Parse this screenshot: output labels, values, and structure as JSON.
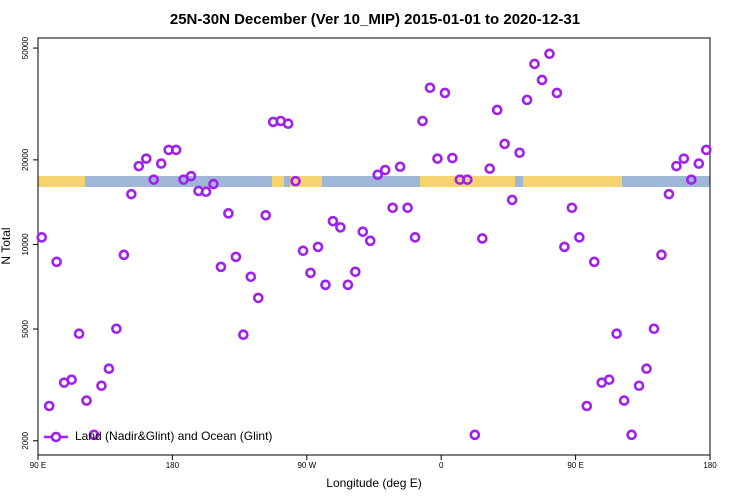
{
  "chart_data": {
    "type": "scatter",
    "title": "25N-30N December (Ver 10_MIP)   2015-01-01 to 2020-12-31",
    "x_label": "Longitude (deg E)",
    "y_label": "N Total",
    "log_y": true,
    "legend": "bottomleft",
    "xlim": [
      90,
      540
    ],
    "ylim": [
      1780,
      54300
    ],
    "xticks": [
      {
        "value": 90,
        "label": "90 E"
      },
      180,
      {
        "value": 270,
        "label": "90 W"
      },
      {
        "value": 360,
        "label": "0"
      },
      {
        "value": 450,
        "label": "90 E"
      },
      {
        "value": 540,
        "label": "180"
      }
    ],
    "yticks": [
      2000,
      5000,
      10000,
      20000,
      50000
    ],
    "x": [
      92.5,
      97.5,
      102.5,
      107.5,
      112.5,
      117.5,
      122.5,
      127.5,
      132.5,
      137.5,
      142.5,
      147.5,
      152.5,
      157.5,
      162.5,
      167.5,
      172.5,
      177.5,
      182.5,
      187.5,
      192.5,
      197.5,
      202.5,
      207.5,
      212.5,
      217.5,
      222.5,
      227.5,
      232.5,
      237.5,
      242.5,
      247.5,
      252.5,
      257.5,
      262.5,
      267.5,
      272.5,
      277.5,
      282.5,
      287.5,
      292.5,
      297.5,
      302.5,
      307.5,
      312.5,
      317.5,
      322.5,
      327.5,
      332.5,
      337.5,
      342.5,
      347.5,
      352.5,
      357.5,
      362.5,
      367.5,
      372.5,
      377.5,
      382.5,
      387.5,
      392.5,
      397.5,
      402.5,
      407.5,
      412.5,
      417.5,
      422.5,
      427.5,
      432.5,
      437.5,
      442.5,
      447.5,
      452.5,
      457.5,
      462.5,
      467.5,
      472.5,
      477.5,
      482.5,
      487.5,
      492.5,
      497.5,
      502.5,
      507.5,
      512.5,
      517.5,
      522.5,
      527.5,
      532.5,
      537.5
    ],
    "series": [
      {
        "name": "Land (Nadir&Glint) and Ocean (Glint)",
        "color": "#a020f0",
        "values": [
          10600,
          2660,
          8670,
          3220,
          3300,
          4810,
          2780,
          2100,
          3140,
          3610,
          5010,
          9180,
          15100,
          19000,
          20200,
          17000,
          19400,
          21700,
          21700,
          17000,
          17500,
          15500,
          15400,
          16400,
          8320,
          12900,
          9030,
          4770,
          7670,
          6450,
          12700,
          27300,
          27500,
          26900,
          16800,
          9490,
          7920,
          9800,
          7180,
          12100,
          11500,
          7180,
          7990,
          11100,
          10300,
          17700,
          18400,
          13500,
          18900,
          13500,
          10600,
          27500,
          36100,
          20200,
          34600,
          20300,
          17000,
          17000,
          2100,
          10500,
          18600,
          30100,
          22800,
          14400,
          21200,
          32700,
          43900,
          38500,
          47700,
          34600,
          9800,
          13500,
          10600,
          2660,
          8670,
          3220,
          3300,
          4810,
          2780,
          2100,
          3140,
          3610,
          5010,
          9180,
          15100,
          19000,
          20200,
          17000,
          19400,
          21700
        ]
      }
    ]
  }
}
